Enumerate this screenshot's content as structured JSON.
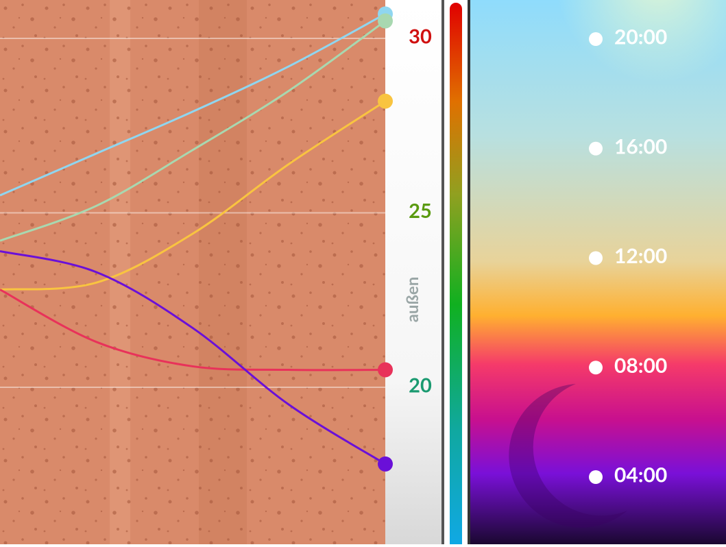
{
  "chart_data": {
    "type": "line",
    "categories": [
      null,
      null,
      null,
      null,
      null
    ],
    "series": [
      {
        "color": "#8fd6f0",
        "values": [
          25.5,
          26.7,
          27.9,
          29.2,
          30.7
        ]
      },
      {
        "color": "#a8d8b0",
        "values": [
          24.2,
          25.2,
          26.8,
          28.5,
          30.5
        ]
      },
      {
        "color": "#f9c440",
        "values": [
          22.8,
          23.0,
          24.4,
          26.4,
          28.2
        ]
      },
      {
        "color": "#e8325a",
        "values": [
          22.8,
          21.3,
          20.6,
          20.5,
          20.5
        ]
      },
      {
        "color": "#6a10d8",
        "values": [
          23.9,
          23.3,
          21.7,
          19.5,
          17.8
        ]
      }
    ],
    "ylim": [
      15.5,
      31.1
    ],
    "yticks": [
      20,
      25,
      30
    ],
    "ytick_colors": [
      "#1a9a70",
      "#5a9a10",
      "#d01010"
    ],
    "y_label": "außen",
    "grid": true
  },
  "time_legend": {
    "labels": [
      "20:00",
      "16:00",
      "12:00",
      "08:00",
      "04:00"
    ]
  }
}
